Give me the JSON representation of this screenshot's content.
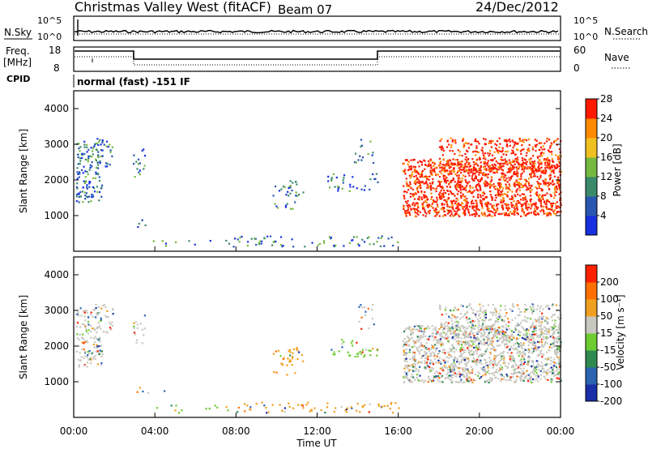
{
  "header": {
    "site": "Christmas Valley West (fitACF)",
    "beam": "Beam 07",
    "date": "24/Dec/2012"
  },
  "strips": {
    "nsky_label": "N.Sky",
    "nsearch_label": "N.Search",
    "nsky_ticks": [
      "10^5",
      "10^0"
    ],
    "nsearch_ticks": [
      "10^5",
      "10^0"
    ],
    "freq_label_1": "Freq.",
    "freq_label_2": "[MHz]",
    "freq_ticks": [
      "18",
      "8"
    ],
    "nave_label": "Nave",
    "nave_ticks": [
      "60",
      "0"
    ],
    "cpid_label": "CPID",
    "cpid_text": "normal (fast) -151 IF"
  },
  "chart_data": [
    {
      "type": "heatmap",
      "name": "power-panel",
      "ylabel": "Slant Range [km]",
      "y_ticks": [
        "1000",
        "2000",
        "3000",
        "4000"
      ],
      "ylim": [
        0,
        4500
      ],
      "xlim_hours": [
        0,
        24
      ],
      "colorbar_label": "Power [dB]",
      "colorbar_ticks": [
        "4",
        "8",
        "12",
        "16",
        "20",
        "24",
        "28"
      ],
      "colors": [
        "#1830e0",
        "#2856b0",
        "#3a8a6a",
        "#74b840",
        "#f0c020",
        "#ff8a00",
        "#ff1a00"
      ]
    },
    {
      "type": "heatmap",
      "name": "velocity-panel",
      "ylabel": "Slant Range [km]",
      "y_ticks": [
        "1000",
        "2000",
        "3000",
        "4000"
      ],
      "ylim": [
        0,
        4500
      ],
      "xlim_hours": [
        0,
        24
      ],
      "colorbar_label": "Velocity [m s⁻¹]",
      "colorbar_ticks": [
        "200",
        "100",
        "50",
        "15",
        "-15",
        "-50",
        "-100",
        "-200"
      ],
      "colors": [
        "#1a2ea8",
        "#2a64b0",
        "#2f8a52",
        "#6ccc30",
        "#c8c8c0",
        "#f0a020",
        "#ff7000",
        "#ff2000"
      ]
    }
  ],
  "xaxis": {
    "label": "Time UT",
    "ticks": [
      "00:00",
      "04:00",
      "08:00",
      "12:00",
      "16:00",
      "20:00",
      "00:00"
    ]
  }
}
